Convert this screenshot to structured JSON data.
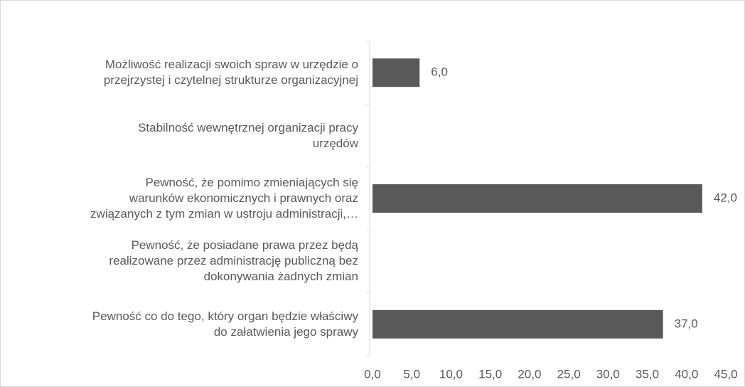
{
  "chart_data": {
    "type": "bar",
    "orientation": "horizontal",
    "categories": [
      "Możliwość realizacji swoich spraw w urzędzie o\nprzejrzystej i czytelnej strukturze organizacyjnej",
      "Stabilność wewnętrznej organizacji pracy\nurzędów",
      "Pewność, że pomimo zmieniających się\nwarunków ekonomicznych i prawnych oraz\nzwiązanych z tym zmian w ustroju administracji,…",
      "Pewność, że posiadane prawa przez będą\nrealizowane przez administrację publiczną bez\ndokonywania żadnych zmian",
      "Pewność co do tego, który organ będzie właściwy\ndo załatwienia jego sprawy"
    ],
    "values": [
      6,
      null,
      42,
      null,
      37
    ],
    "value_labels": [
      "6,0",
      null,
      "42,0",
      null,
      "37,0"
    ],
    "color": "#595959",
    "xlim": [
      0,
      45
    ],
    "xticks": [
      {
        "value": 0,
        "label": "0,0"
      },
      {
        "value": 5,
        "label": "5,0"
      },
      {
        "value": 10,
        "label": "10,0"
      },
      {
        "value": 15,
        "label": "15,0"
      },
      {
        "value": 20,
        "label": "20,0"
      },
      {
        "value": 25,
        "label": "25,0"
      },
      {
        "value": 30,
        "label": "30,0"
      },
      {
        "value": 35,
        "label": "35,0"
      },
      {
        "value": 40,
        "label": "40,0"
      },
      {
        "value": 45,
        "label": "45,0"
      }
    ],
    "grid": false
  }
}
